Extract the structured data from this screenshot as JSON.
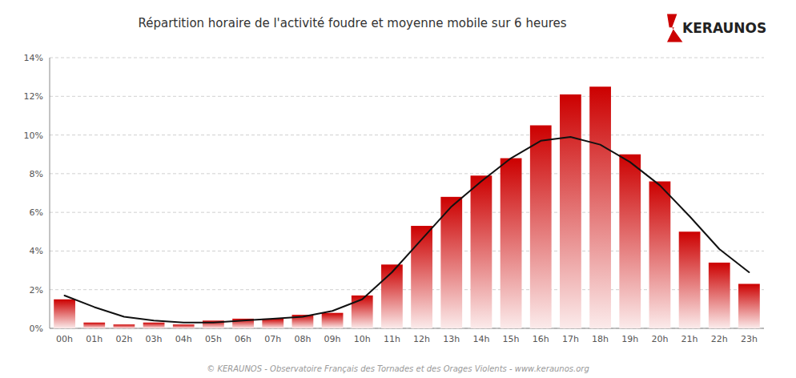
{
  "chart_data": {
    "type": "bar",
    "title": "Répartition horaire de l'activité foudre et moyenne mobile sur 6 heures",
    "annotations": [
      "KERAUNOS",
      "© KERAUNOS - Observatoire Français des Tornades et des Orages Violents - www.keraunos.org"
    ],
    "categories": [
      "00h",
      "01h",
      "02h",
      "03h",
      "04h",
      "05h",
      "06h",
      "07h",
      "08h",
      "09h",
      "10h",
      "11h",
      "12h",
      "13h",
      "14h",
      "15h",
      "16h",
      "17h",
      "18h",
      "19h",
      "20h",
      "21h",
      "22h",
      "23h"
    ],
    "series": [
      {
        "type": "bar",
        "color": "#cc0000",
        "values": [
          1.5,
          0.3,
          0.2,
          0.3,
          0.2,
          0.4,
          0.5,
          0.5,
          0.7,
          0.8,
          1.7,
          3.3,
          5.3,
          6.8,
          7.9,
          8.8,
          10.5,
          12.1,
          12.5,
          9.0,
          7.6,
          5.0,
          3.4,
          2.3
        ]
      },
      {
        "type": "line",
        "color": "#111111",
        "values": [
          1.7,
          1.1,
          0.6,
          0.4,
          0.3,
          0.3,
          0.4,
          0.5,
          0.6,
          0.9,
          1.5,
          2.9,
          4.6,
          6.3,
          7.6,
          8.8,
          9.7,
          9.9,
          9.5,
          8.6,
          7.4,
          5.8,
          4.1,
          2.9
        ]
      }
    ],
    "ylim": [
      0,
      14
    ],
    "yticks": [
      {
        "value": 0,
        "label": "0%"
      },
      {
        "value": 2,
        "label": "2%"
      },
      {
        "value": 4,
        "label": "4%"
      },
      {
        "value": 6,
        "label": "6%"
      },
      {
        "value": 8,
        "label": "8%"
      },
      {
        "value": 10,
        "label": "10%"
      },
      {
        "value": 12,
        "label": "12%"
      },
      {
        "value": 14,
        "label": "14%"
      }
    ],
    "grid": true
  }
}
